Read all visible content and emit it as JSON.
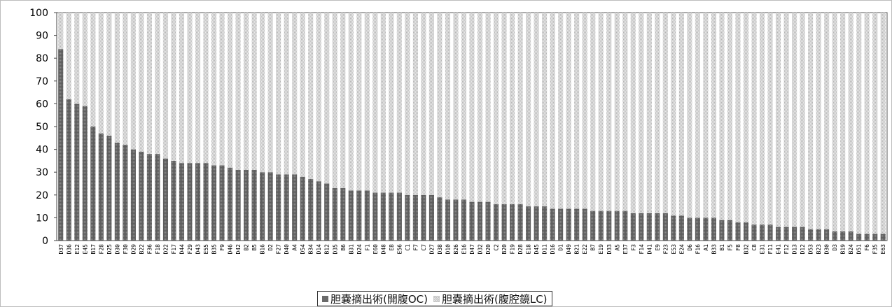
{
  "chart_data": {
    "type": "bar",
    "stacked": true,
    "percent": true,
    "ylim": [
      0,
      100
    ],
    "yticks": [
      0,
      10,
      20,
      30,
      40,
      50,
      60,
      70,
      80,
      90,
      100
    ],
    "grid": false,
    "legend_position": "bottom",
    "categories": [
      "D37",
      "D36",
      "E12",
      "E45",
      "B17",
      "F28",
      "D25",
      "D30",
      "F30",
      "D29",
      "B22",
      "F36",
      "F18",
      "D22",
      "F17",
      "D44",
      "F29",
      "D43",
      "E55",
      "B35",
      "F9",
      "D46",
      "D42",
      "B2",
      "B5",
      "B16",
      "D2",
      "F27",
      "D40",
      "A4",
      "D54",
      "B34",
      "D14",
      "B12",
      "D35",
      "B6",
      "B31",
      "D24",
      "F1",
      "E60",
      "D48",
      "E8",
      "E56",
      "C1",
      "F7",
      "C7",
      "D27",
      "D38",
      "D10",
      "B26",
      "E16",
      "D47",
      "D32",
      "D20",
      "C2",
      "B20",
      "F19",
      "D28",
      "E18",
      "D45",
      "D11",
      "D16",
      "D1",
      "D49",
      "B21",
      "E22",
      "B7",
      "E19",
      "D33",
      "A5",
      "E37",
      "F3",
      "F14",
      "D41",
      "E9",
      "F23",
      "E53",
      "E24",
      "D6",
      "F16",
      "A1",
      "B33",
      "B1",
      "F5",
      "F8",
      "B32",
      "C8",
      "E31",
      "F11",
      "E41",
      "F12",
      "D13",
      "D12",
      "D53",
      "B23",
      "D30",
      "D3",
      "B19",
      "B24",
      "D51",
      "F6",
      "F35",
      "E63"
    ],
    "series": [
      {
        "name": "胆嚢摘出術(開腹OC)",
        "color": "#6a6a6a",
        "values": [
          84,
          62,
          60,
          59,
          50,
          47,
          46,
          43,
          42,
          40,
          39,
          38,
          38,
          36,
          35,
          34,
          34,
          34,
          34,
          33,
          33,
          32,
          31,
          31,
          31,
          30,
          30,
          29,
          29,
          29,
          28,
          27,
          26,
          25,
          23,
          23,
          22,
          22,
          22,
          21,
          21,
          21,
          21,
          20,
          20,
          20,
          20,
          19,
          18,
          18,
          18,
          17,
          17,
          17,
          16,
          16,
          16,
          16,
          15,
          15,
          15,
          14,
          14,
          14,
          14,
          14,
          13,
          13,
          13,
          13,
          13,
          12,
          12,
          12,
          12,
          12,
          11,
          11,
          10,
          10,
          10,
          10,
          9,
          9,
          8,
          8,
          7,
          7,
          7,
          6,
          6,
          6,
          6,
          5,
          5,
          5,
          4,
          4,
          4,
          3,
          3,
          3,
          3
        ]
      },
      {
        "name": "胆嚢摘出術(腹腔鏡LC)",
        "color": "#d6d6d6",
        "values": [
          16,
          38,
          40,
          41,
          50,
          53,
          54,
          57,
          58,
          60,
          61,
          62,
          62,
          64,
          65,
          66,
          66,
          66,
          66,
          67,
          67,
          68,
          69,
          69,
          69,
          70,
          70,
          71,
          71,
          71,
          72,
          73,
          74,
          75,
          77,
          77,
          78,
          78,
          78,
          79,
          79,
          79,
          79,
          80,
          80,
          80,
          80,
          81,
          82,
          82,
          82,
          83,
          83,
          83,
          84,
          84,
          84,
          84,
          85,
          85,
          85,
          86,
          86,
          86,
          86,
          86,
          87,
          87,
          87,
          87,
          87,
          88,
          88,
          88,
          88,
          88,
          89,
          89,
          90,
          90,
          90,
          90,
          91,
          91,
          92,
          92,
          93,
          93,
          93,
          94,
          94,
          94,
          94,
          95,
          95,
          95,
          96,
          96,
          96,
          97,
          97,
          97,
          97
        ]
      }
    ]
  }
}
